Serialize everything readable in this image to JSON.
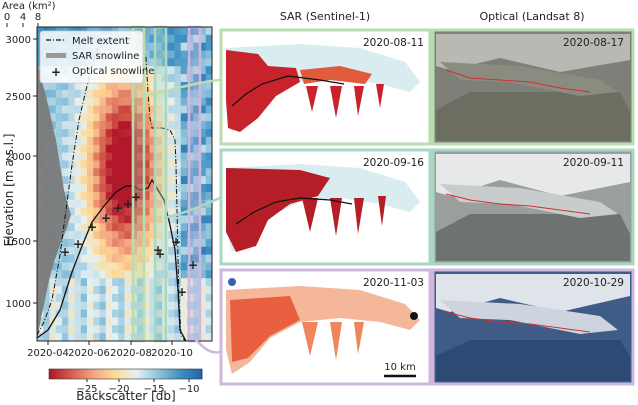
{
  "area_axis": {
    "label": "Area (km²)",
    "ticks": [
      "0",
      "4",
      "8"
    ]
  },
  "y_axis": {
    "label": "Elevation [m a.s.l.]",
    "ticks": [
      "3000",
      "2500",
      "2000",
      "1500",
      "1000"
    ]
  },
  "x_axis": {
    "ticks": [
      "2020-04",
      "2020-06",
      "2020-08",
      "2020-10"
    ]
  },
  "legend": {
    "items": [
      {
        "key": "melt",
        "label": "Melt extent"
      },
      {
        "key": "sar",
        "label": "SAR snowline"
      },
      {
        "key": "optical",
        "label": "Optical snowline"
      }
    ]
  },
  "colorbar": {
    "label": "Backscatter [db]",
    "ticks": [
      "−25",
      "−20",
      "−15",
      "−10"
    ]
  },
  "columns": {
    "sar_title": "SAR (Sentinel-1)",
    "optical_title": "Optical (Landsat 8)"
  },
  "panels": {
    "sar_dates": [
      "2020-08-11",
      "2020-09-16",
      "2020-11-03"
    ],
    "optical_dates": [
      "2020-08-17",
      "2020-09-11",
      "2020-10-29"
    ],
    "frame_colors": [
      "#b8deb0",
      "#a8d8c0",
      "#cfb8de"
    ]
  },
  "scale_bar": {
    "label": "10 km"
  }
}
